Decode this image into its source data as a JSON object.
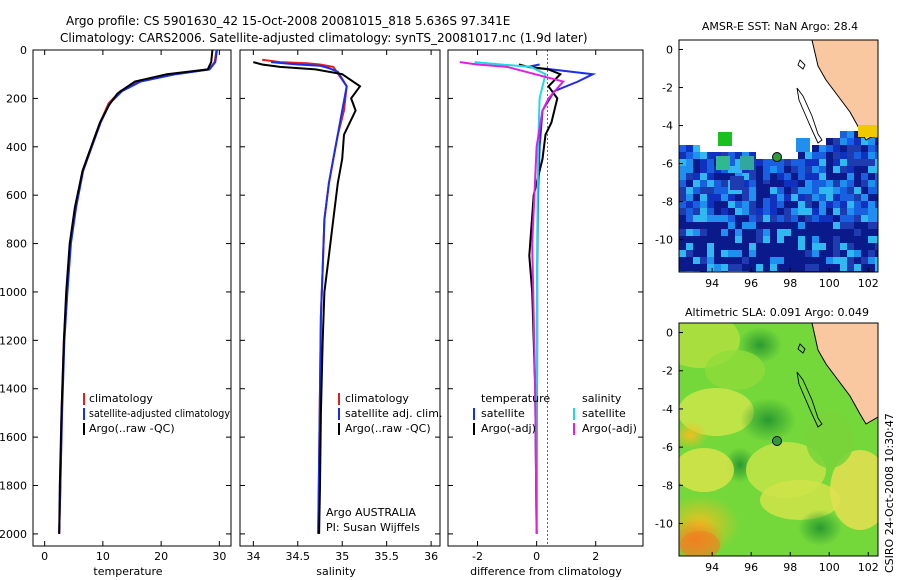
{
  "header": {
    "line1": "Argo profile: CS 5901630_42 15-Oct-2008 20081015_818 5.636S 97.341E",
    "line2": "Climatology: CARS2006. Satellite-adjusted climatology: synTS_20081017.nc (1.9d later)"
  },
  "chart_data": [
    {
      "type": "line",
      "panel": "temperature",
      "xlabel": "temperature",
      "ylabel": "",
      "xlim": [
        -2,
        32
      ],
      "ylim": [
        2050,
        0
      ],
      "xticks": [
        0,
        10,
        20,
        30
      ],
      "yticks": [
        0,
        200,
        400,
        600,
        800,
        1000,
        1200,
        1400,
        1600,
        1800,
        2000
      ],
      "series": [
        {
          "name": "climatology",
          "color": "#e02020",
          "x": [
            29.5,
            29.2,
            28.2,
            22,
            16,
            13,
            11,
            9.5,
            8,
            6.5,
            5.3,
            4.4,
            3.8,
            3.3,
            2.9,
            2.7,
            2.5
          ],
          "y": [
            0,
            50,
            80,
            100,
            130,
            170,
            220,
            300,
            400,
            500,
            650,
            800,
            1000,
            1200,
            1500,
            1800,
            2000
          ]
        },
        {
          "name": "satellite-adjusted climatology",
          "color": "#1a2ee8",
          "x": [
            29.6,
            29.3,
            28.3,
            22.5,
            16.5,
            13.3,
            11.2,
            9.6,
            8.1,
            6.6,
            5.4,
            4.5,
            3.9,
            3.4,
            3.0,
            2.7,
            2.5
          ],
          "y": [
            0,
            50,
            80,
            100,
            130,
            170,
            220,
            300,
            400,
            500,
            650,
            800,
            1000,
            1200,
            1500,
            1800,
            2000
          ]
        },
        {
          "name": "Argo(..raw -QC)",
          "color": "#000000",
          "x": [
            28.8,
            28.6,
            28,
            21,
            15.5,
            12.5,
            11,
            9.5,
            8,
            6.5,
            5.2,
            4.3,
            3.7,
            3.3,
            2.9,
            2.6,
            2.5
          ],
          "y": [
            0,
            50,
            80,
            100,
            130,
            180,
            230,
            300,
            400,
            500,
            650,
            800,
            1000,
            1200,
            1500,
            1800,
            2000
          ]
        }
      ]
    },
    {
      "type": "line",
      "panel": "salinity",
      "xlabel": "salinity",
      "ylabel": "",
      "xlim": [
        33.85,
        36.1
      ],
      "ylim": [
        2050,
        0
      ],
      "xticks": [
        34,
        34.5,
        35,
        35.5,
        36
      ],
      "series": [
        {
          "name": "climatology",
          "color": "#e02020",
          "x": [
            34.1,
            34.3,
            34.6,
            34.75,
            34.9,
            35.05,
            35.02,
            34.95,
            34.9,
            34.85,
            34.8,
            34.78,
            34.76,
            34.75,
            34.74,
            34.73
          ],
          "y": [
            40,
            50,
            55,
            60,
            70,
            150,
            250,
            350,
            450,
            550,
            700,
            900,
            1100,
            1400,
            1700,
            2000
          ]
        },
        {
          "name": "satellite adj. clim.",
          "color": "#1a2ee8",
          "x": [
            34.2,
            34.5,
            34.75,
            34.85,
            34.95,
            35.05,
            35.0,
            34.95,
            34.9,
            34.85,
            34.8,
            34.78,
            34.76,
            34.75,
            34.74,
            34.73
          ],
          "y": [
            50,
            60,
            65,
            75,
            90,
            150,
            250,
            350,
            450,
            550,
            700,
            900,
            1100,
            1400,
            1700,
            2000
          ]
        },
        {
          "name": "Argo(..raw -QC)",
          "color": "#000000",
          "x": [
            34.0,
            34.1,
            34.3,
            34.7,
            35.0,
            35.2,
            35.1,
            35.15,
            35.02,
            35.0,
            34.95,
            34.9,
            34.85,
            34.8,
            34.78,
            34.76,
            34.75,
            34.74
          ],
          "y": [
            50,
            60,
            70,
            80,
            100,
            150,
            200,
            250,
            350,
            450,
            550,
            700,
            850,
            1000,
            1200,
            1500,
            1800,
            2000
          ]
        }
      ],
      "annotations": [
        "Argo AUSTRALIA",
        "PI: Susan Wijffels"
      ]
    },
    {
      "type": "line",
      "panel": "difference",
      "xlabel": "difference from climatology",
      "ylabel": "",
      "xlim": [
        -3,
        3.6
      ],
      "ylim": [
        2050,
        0
      ],
      "xticks": [
        -2,
        0,
        2
      ],
      "series": [
        {
          "name": "temperature satellite",
          "color": "#1a2ee8",
          "x": [
            0.1,
            -0.3,
            0.5,
            1.9,
            1.4,
            0.6,
            0.2,
            0.1,
            0.05,
            0.02,
            0.02,
            0.01,
            0.0
          ],
          "y": [
            60,
            70,
            80,
            100,
            130,
            170,
            250,
            400,
            600,
            900,
            1200,
            1600,
            2000
          ]
        },
        {
          "name": "temperature Argo(-adj)",
          "color": "#000000",
          "x": [
            -0.6,
            -0.3,
            0.4,
            0.8,
            0.4,
            0.7,
            0.5,
            0.3,
            0.2,
            -0.1,
            -0.25,
            -0.15,
            -0.05,
            0.0
          ],
          "y": [
            60,
            70,
            80,
            100,
            150,
            200,
            300,
            350,
            450,
            600,
            850,
            1000,
            1400,
            2000
          ]
        },
        {
          "name": "salinity satellite",
          "color": "#22d8e8",
          "x": [
            -2.1,
            -1.2,
            -0.2,
            0.3,
            0.1,
            0.05,
            0.02,
            0.01,
            0.0
          ],
          "y": [
            50,
            60,
            70,
            100,
            200,
            400,
            800,
            1400,
            2000
          ]
        },
        {
          "name": "salinity Argo(-adj)",
          "color": "#e020e0",
          "x": [
            -2.6,
            -2.0,
            -1.0,
            0.9,
            0.4,
            0.2,
            0.0,
            -0.15,
            -0.05,
            0.0
          ],
          "y": [
            50,
            60,
            70,
            130,
            200,
            250,
            400,
            800,
            1400,
            2000
          ]
        }
      ],
      "legend_headers": [
        "temperature",
        "salinity"
      ]
    },
    {
      "type": "heatmap",
      "title": "AMSR-E SST: NaN Argo: 28.4",
      "xticks": [
        94,
        96,
        98,
        100,
        102
      ],
      "yticks": [
        -2,
        -4,
        -6,
        -8,
        -10
      ],
      "argo_position": {
        "lon": 97.341,
        "lat": -5.636
      }
    },
    {
      "type": "heatmap",
      "title": "Altimetric SLA: 0.091 Argo: 0.049",
      "xticks": [
        94,
        96,
        98,
        100,
        102
      ],
      "yticks": [
        -2,
        -4,
        -6,
        -8,
        -10
      ],
      "argo_position": {
        "lon": 97.341,
        "lat": -5.636
      }
    }
  ],
  "footer": {
    "stamp": "CSIRO 24-Oct-2008 10:30:47"
  }
}
